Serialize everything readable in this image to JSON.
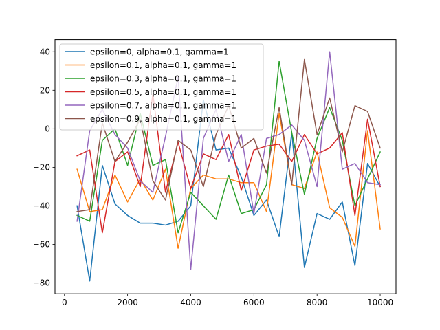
{
  "chart_data": {
    "type": "line",
    "title": "",
    "xlabel": "",
    "ylabel": "",
    "xlim": [
      -300,
      10500
    ],
    "ylim": [
      -85.6,
      46.3
    ],
    "xticks": [
      0,
      2000,
      4000,
      6000,
      8000,
      10000
    ],
    "yticks": [
      -80,
      -60,
      -40,
      -20,
      0,
      20,
      40
    ],
    "grid": false,
    "legend_position": "upper-left",
    "x": [
      400,
      800,
      1200,
      1600,
      2000,
      2400,
      2800,
      3200,
      3600,
      4000,
      4400,
      4800,
      5200,
      5600,
      6000,
      6400,
      6800,
      7200,
      7600,
      8000,
      8400,
      8800,
      9200,
      9600,
      10000
    ],
    "series": [
      {
        "name": "epsilon=0, alpha=0.1, gamma=1",
        "color": "#1f77b4",
        "values": [
          -40,
          -79,
          -19,
          -39,
          -45,
          -49,
          -49,
          -50,
          -48,
          -40,
          15,
          -11,
          -10,
          -25,
          -45,
          -37,
          -56,
          -2,
          -72,
          -44,
          -47,
          -38,
          -71,
          -18,
          -30
        ]
      },
      {
        "name": "epsilon=0.1, alpha=0.1, gamma=1",
        "color": "#ff7f0e",
        "values": [
          -21,
          -43,
          -42,
          -24,
          -38,
          -26,
          -37,
          -21,
          -62,
          -31,
          -24,
          -26,
          -26,
          -28,
          -28,
          -43,
          8,
          -29,
          -31,
          -12,
          -41,
          -46,
          -61,
          -1,
          -52
        ]
      },
      {
        "name": "epsilon=0.3, alpha=0.1, gamma=1",
        "color": "#2ca02c",
        "values": [
          -45,
          -48,
          -6,
          0,
          -19,
          8,
          -19,
          -16,
          -54,
          -33,
          -40,
          -47,
          -24,
          -44,
          -42,
          -29,
          35,
          -2,
          -34,
          -5,
          11,
          -6,
          -40,
          -26,
          -12
        ]
      },
      {
        "name": "epsilon=0.5, alpha=0.1, gamma=1",
        "color": "#d62728",
        "values": [
          -14,
          -11,
          -54,
          -17,
          -12,
          -30,
          18,
          -33,
          -7,
          -31,
          -13,
          -16,
          -3,
          -32,
          -11,
          -9,
          -8,
          -17,
          -3,
          -13,
          -10,
          -2,
          -45,
          5,
          -30
        ]
      },
      {
        "name": "epsilon=0.7, alpha=0.1, gamma=1",
        "color": "#9467bd",
        "values": [
          -48,
          -1,
          10,
          -3,
          -10,
          -27,
          -33,
          -4,
          27,
          -73,
          -5,
          10,
          -17,
          -3,
          -44,
          -5,
          -3,
          2,
          -6,
          -30,
          40,
          -21,
          -18,
          -28,
          -29
        ]
      },
      {
        "name": "epsilon=0.9, alpha=0.1, gamma=1",
        "color": "#8c564b",
        "values": [
          -43,
          -42,
          3,
          -17,
          -7,
          5,
          -27,
          -37,
          -6,
          -11,
          -30,
          -3,
          12,
          -10,
          -5,
          -23,
          11,
          -29,
          36,
          -3,
          16,
          -12,
          12,
          9,
          -10
        ]
      }
    ]
  }
}
